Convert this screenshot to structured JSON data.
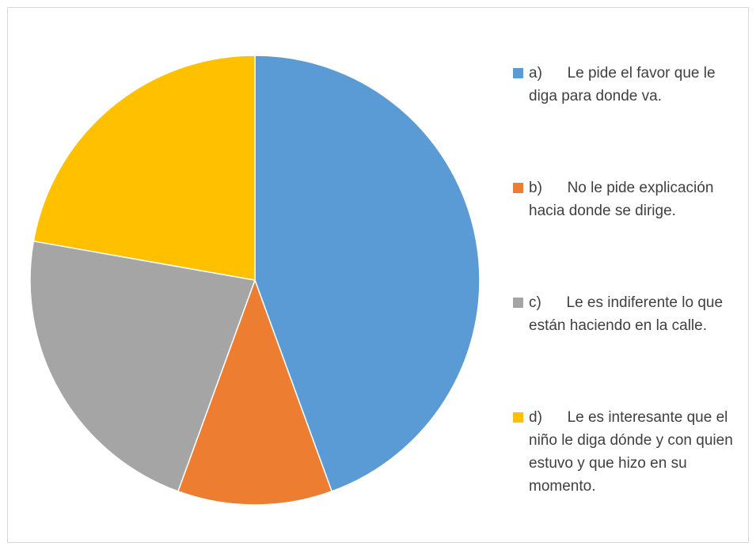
{
  "chart_data": {
    "type": "pie",
    "categories": [
      "a)      Le pide el favor que le diga para donde va.",
      "b)      No le pide explicación hacia donde se dirige.",
      "c)      Le es indiferente lo que están haciendo en la calle.",
      "d)      Le es interesante que el niño le diga dónde y con quien estuvo y que hizo en su momento."
    ],
    "values": [
      44.4,
      11.1,
      22.2,
      22.2
    ],
    "colors": [
      "#5b9bd5",
      "#ed7d31",
      "#a5a5a5",
      "#ffc000"
    ],
    "legend": "right"
  }
}
